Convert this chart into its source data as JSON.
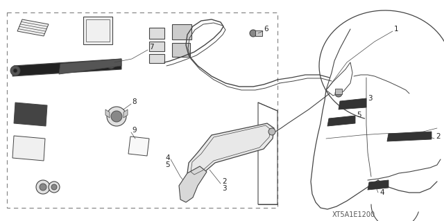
{
  "bg_color": "#ffffff",
  "line_color": "#444444",
  "text_color": "#222222",
  "diagram_code": "XT5A1E1200",
  "figsize": [
    6.4,
    3.19
  ],
  "dpi": 100
}
